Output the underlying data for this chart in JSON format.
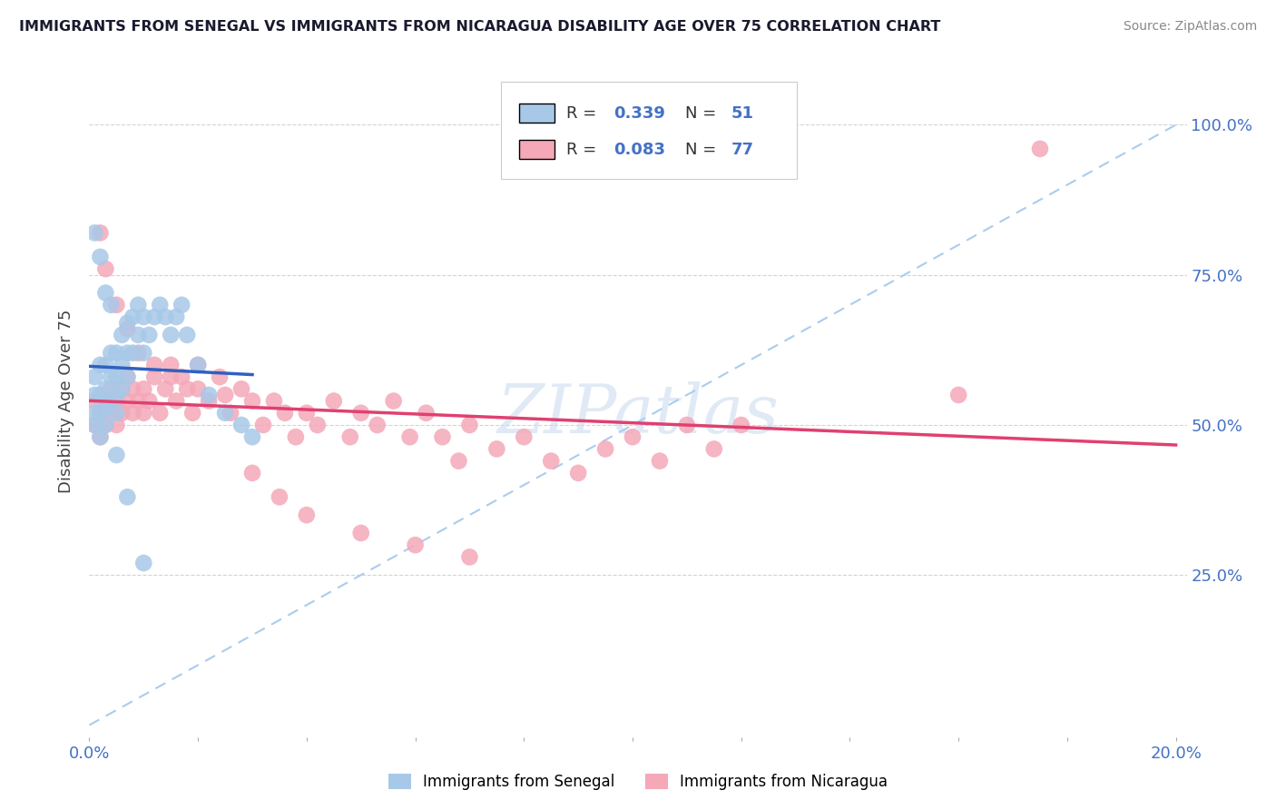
{
  "title": "IMMIGRANTS FROM SENEGAL VS IMMIGRANTS FROM NICARAGUA DISABILITY AGE OVER 75 CORRELATION CHART",
  "source": "Source: ZipAtlas.com",
  "ylabel": "Disability Age Over 75",
  "xlim": [
    0.0,
    0.202
  ],
  "ylim": [
    -0.02,
    1.1
  ],
  "ytick_positions": [
    0.25,
    0.5,
    0.75,
    1.0
  ],
  "ytick_labels": [
    "25.0%",
    "50.0%",
    "75.0%",
    "100.0%"
  ],
  "xtick_positions": [
    0.0,
    0.02,
    0.04,
    0.06,
    0.08,
    0.1,
    0.12,
    0.14,
    0.16,
    0.18,
    0.2
  ],
  "xtick_labels": [
    "0.0%",
    "",
    "",
    "",
    "",
    "",
    "",
    "",
    "",
    "",
    "20.0%"
  ],
  "senegal_color": "#a8c8e8",
  "nicaragua_color": "#f4a8b8",
  "senegal_line_color": "#3060c0",
  "nicaragua_line_color": "#e04070",
  "diagonal_color": "#b0c8e8",
  "R_senegal": 0.339,
  "N_senegal": 51,
  "R_nicaragua": 0.083,
  "N_nicaragua": 77,
  "watermark": "ZIPatlas",
  "legend_label_senegal": "Immigrants from Senegal",
  "legend_label_nicaragua": "Immigrants from Nicaragua",
  "senegal_x": [
    0.001,
    0.001,
    0.001,
    0.001,
    0.002,
    0.002,
    0.002,
    0.002,
    0.003,
    0.003,
    0.003,
    0.003,
    0.004,
    0.004,
    0.004,
    0.005,
    0.005,
    0.005,
    0.005,
    0.006,
    0.006,
    0.006,
    0.007,
    0.007,
    0.007,
    0.008,
    0.008,
    0.009,
    0.009,
    0.01,
    0.01,
    0.011,
    0.012,
    0.013,
    0.014,
    0.015,
    0.016,
    0.017,
    0.018,
    0.02,
    0.022,
    0.025,
    0.028,
    0.03,
    0.001,
    0.002,
    0.003,
    0.004,
    0.005,
    0.007,
    0.01
  ],
  "senegal_y": [
    0.5,
    0.52,
    0.55,
    0.58,
    0.48,
    0.52,
    0.55,
    0.6,
    0.5,
    0.53,
    0.56,
    0.6,
    0.54,
    0.58,
    0.62,
    0.52,
    0.55,
    0.58,
    0.62,
    0.56,
    0.6,
    0.65,
    0.58,
    0.62,
    0.67,
    0.62,
    0.68,
    0.65,
    0.7,
    0.62,
    0.68,
    0.65,
    0.68,
    0.7,
    0.68,
    0.65,
    0.68,
    0.7,
    0.65,
    0.6,
    0.55,
    0.52,
    0.5,
    0.48,
    0.82,
    0.78,
    0.72,
    0.7,
    0.45,
    0.38,
    0.27
  ],
  "nicaragua_x": [
    0.001,
    0.001,
    0.002,
    0.002,
    0.003,
    0.003,
    0.004,
    0.004,
    0.005,
    0.005,
    0.006,
    0.006,
    0.007,
    0.007,
    0.008,
    0.008,
    0.009,
    0.01,
    0.01,
    0.011,
    0.012,
    0.013,
    0.014,
    0.015,
    0.016,
    0.017,
    0.018,
    0.019,
    0.02,
    0.022,
    0.024,
    0.026,
    0.028,
    0.03,
    0.032,
    0.034,
    0.036,
    0.038,
    0.04,
    0.042,
    0.045,
    0.048,
    0.05,
    0.053,
    0.056,
    0.059,
    0.062,
    0.065,
    0.068,
    0.07,
    0.075,
    0.08,
    0.085,
    0.09,
    0.095,
    0.1,
    0.105,
    0.11,
    0.115,
    0.12,
    0.002,
    0.003,
    0.005,
    0.007,
    0.009,
    0.012,
    0.015,
    0.02,
    0.025,
    0.03,
    0.035,
    0.04,
    0.05,
    0.06,
    0.07,
    0.16,
    0.175
  ],
  "nicaragua_y": [
    0.5,
    0.54,
    0.48,
    0.52,
    0.5,
    0.54,
    0.52,
    0.56,
    0.5,
    0.54,
    0.52,
    0.56,
    0.54,
    0.58,
    0.52,
    0.56,
    0.54,
    0.52,
    0.56,
    0.54,
    0.58,
    0.52,
    0.56,
    0.6,
    0.54,
    0.58,
    0.56,
    0.52,
    0.56,
    0.54,
    0.58,
    0.52,
    0.56,
    0.54,
    0.5,
    0.54,
    0.52,
    0.48,
    0.52,
    0.5,
    0.54,
    0.48,
    0.52,
    0.5,
    0.54,
    0.48,
    0.52,
    0.48,
    0.44,
    0.5,
    0.46,
    0.48,
    0.44,
    0.42,
    0.46,
    0.48,
    0.44,
    0.5,
    0.46,
    0.5,
    0.82,
    0.76,
    0.7,
    0.66,
    0.62,
    0.6,
    0.58,
    0.6,
    0.55,
    0.42,
    0.38,
    0.35,
    0.32,
    0.3,
    0.28,
    0.55,
    0.96
  ]
}
